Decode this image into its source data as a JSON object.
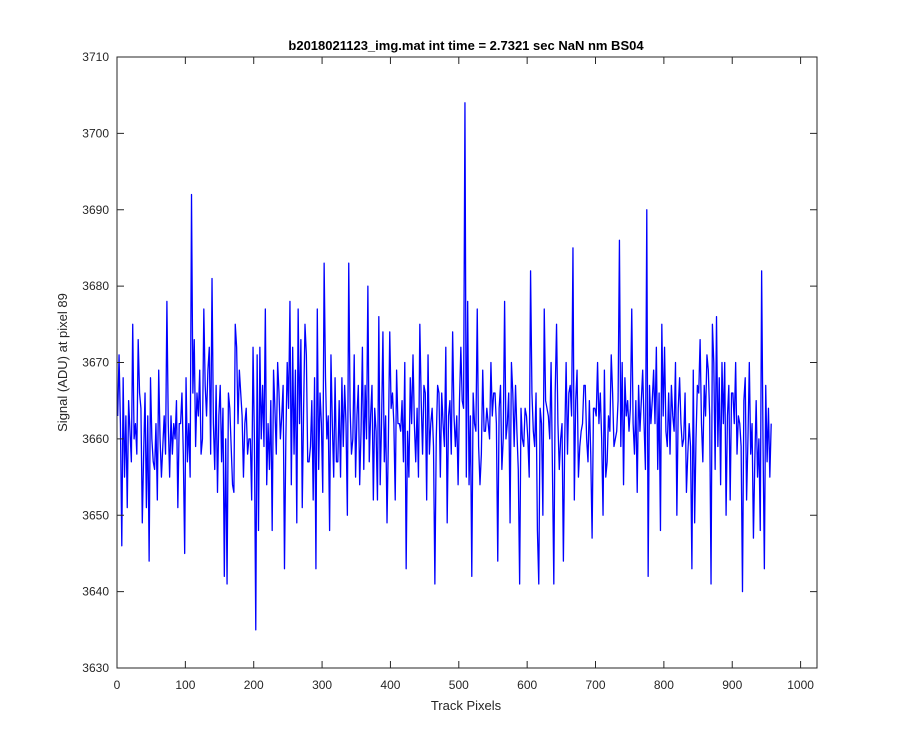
{
  "chart_data": {
    "type": "line",
    "title": "b2018021123_img.mat int time = 2.7321 sec  NaN nm BS04",
    "xlabel": "Track Pixels",
    "ylabel": "Signal (ADU) at pixel 89",
    "xlim": [
      0,
      1024
    ],
    "ylim": [
      3630,
      3710
    ],
    "x_ticks": [
      0,
      100,
      200,
      300,
      400,
      500,
      600,
      700,
      800,
      900,
      1000
    ],
    "y_ticks": [
      3630,
      3640,
      3650,
      3660,
      3670,
      3680,
      3690,
      3700,
      3710
    ],
    "grid": false,
    "line_color": "#0000ff",
    "series": [
      {
        "x_start": 1,
        "x_step": 2,
        "values": [
          3663,
          3671,
          3662,
          3646,
          3668,
          3655,
          3663,
          3651,
          3665,
          3661,
          3657,
          3675,
          3660,
          3662,
          3658,
          3673,
          3666,
          3664,
          3649,
          3658,
          3666,
          3651,
          3663,
          3644,
          3668,
          3660,
          3657,
          3656,
          3662,
          3652,
          3669,
          3660,
          3655,
          3659,
          3663,
          3658,
          3678,
          3662,
          3655,
          3663,
          3658,
          3662,
          3660,
          3665,
          3651,
          3662,
          3662,
          3666,
          3658,
          3645,
          3668,
          3657,
          3662,
          3655,
          3692,
          3666,
          3673,
          3659,
          3666,
          3663,
          3669,
          3658,
          3660,
          3677,
          3667,
          3663,
          3669,
          3672,
          3658,
          3681,
          3662,
          3656,
          3667,
          3653,
          3663,
          3667,
          3657,
          3664,
          3642,
          3660,
          3641,
          3666,
          3664,
          3659,
          3654,
          3653,
          3675,
          3672,
          3662,
          3669,
          3666,
          3663,
          3655,
          3662,
          3664,
          3658,
          3660,
          3660,
          3652,
          3672,
          3660,
          3635,
          3671,
          3648,
          3672,
          3660,
          3667,
          3659,
          3677,
          3654,
          3662,
          3656,
          3665,
          3648,
          3669,
          3664,
          3658,
          3670,
          3666,
          3660,
          3663,
          3667,
          3643,
          3660,
          3670,
          3664,
          3678,
          3654,
          3672,
          3658,
          3669,
          3649,
          3677,
          3662,
          3673,
          3651,
          3664,
          3675,
          3671,
          3657,
          3657,
          3659,
          3665,
          3652,
          3668,
          3643,
          3677,
          3656,
          3666,
          3662,
          3653,
          3683,
          3668,
          3660,
          3663,
          3648,
          3671,
          3662,
          3655,
          3668,
          3657,
          3657,
          3665,
          3655,
          3668,
          3659,
          3667,
          3662,
          3650,
          3683,
          3664,
          3658,
          3660,
          3671,
          3655,
          3663,
          3667,
          3654,
          3661,
          3672,
          3656,
          3667,
          3660,
          3680,
          3657,
          3663,
          3667,
          3652,
          3664,
          3661,
          3652,
          3676,
          3654,
          3662,
          3674,
          3657,
          3663,
          3649,
          3660,
          3674,
          3664,
          3666,
          3662,
          3652,
          3669,
          3662,
          3662,
          3661,
          3665,
          3657,
          3670,
          3643,
          3661,
          3655,
          3668,
          3662,
          3671,
          3662,
          3657,
          3664,
          3655,
          3675,
          3665,
          3658,
          3667,
          3666,
          3652,
          3671,
          3658,
          3662,
          3664,
          3659,
          3641,
          3660,
          3667,
          3666,
          3655,
          3666,
          3662,
          3659,
          3672,
          3649,
          3663,
          3665,
          3658,
          3674,
          3663,
          3659,
          3663,
          3654,
          3665,
          3672,
          3665,
          3664,
          3704,
          3655,
          3678,
          3654,
          3663,
          3642,
          3666,
          3662,
          3661,
          3677,
          3659,
          3654,
          3658,
          3669,
          3661,
          3661,
          3664,
          3662,
          3660,
          3670,
          3663,
          3666,
          3666,
          3662,
          3644,
          3664,
          3667,
          3656,
          3660,
          3678,
          3660,
          3662,
          3666,
          3649,
          3670,
          3666,
          3659,
          3667,
          3661,
          3656,
          3641,
          3664,
          3660,
          3659,
          3664,
          3663,
          3660,
          3655,
          3682,
          3666,
          3661,
          3659,
          3666,
          3648,
          3641,
          3664,
          3662,
          3650,
          3677,
          3665,
          3664,
          3663,
          3660,
          3670,
          3656,
          3641,
          3666,
          3675,
          3662,
          3656,
          3660,
          3662,
          3644,
          3660,
          3670,
          3658,
          3666,
          3667,
          3663,
          3685,
          3652,
          3665,
          3669,
          3655,
          3659,
          3661,
          3662,
          3667,
          3667,
          3660,
          3657,
          3665,
          3658,
          3647,
          3664,
          3664,
          3663,
          3670,
          3662,
          3666,
          3660,
          3650,
          3669,
          3655,
          3657,
          3663,
          3661,
          3671,
          3666,
          3659,
          3660,
          3661,
          3665,
          3686,
          3659,
          3670,
          3654,
          3668,
          3663,
          3665,
          3661,
          3664,
          3677,
          3662,
          3658,
          3665,
          3653,
          3667,
          3661,
          3665,
          3669,
          3662,
          3656,
          3690,
          3642,
          3667,
          3662,
          3665,
          3669,
          3662,
          3672,
          3656,
          3666,
          3648,
          3675,
          3663,
          3672,
          3661,
          3659,
          3666,
          3658,
          3667,
          3663,
          3661,
          3670,
          3650,
          3664,
          3668,
          3662,
          3659,
          3660,
          3666,
          3653,
          3658,
          3662,
          3659,
          3643,
          3669,
          3649,
          3660,
          3667,
          3666,
          3673,
          3662,
          3657,
          3667,
          3663,
          3671,
          3669,
          3663,
          3641,
          3675,
          3670,
          3656,
          3676,
          3659,
          3668,
          3654,
          3670,
          3662,
          3670,
          3650,
          3663,
          3667,
          3652,
          3666,
          3666,
          3662,
          3670,
          3658,
          3663,
          3662,
          3659,
          3640,
          3665,
          3668,
          3652,
          3660,
          3670,
          3658,
          3662,
          3647,
          3657,
          3665,
          3655,
          3660,
          3648,
          3682,
          3660,
          3643,
          3667,
          3657,
          3664,
          3655,
          3662
        ]
      }
    ]
  }
}
